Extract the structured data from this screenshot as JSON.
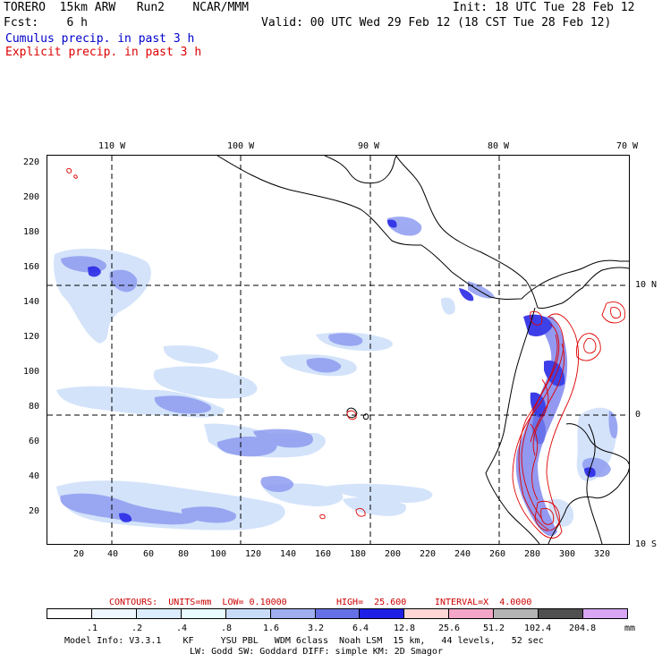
{
  "header": {
    "model_line": "TORERO  15km ARW   Run2    NCAR/MMM",
    "fcst_line": "Fcst:    6 h",
    "init_line": "Init: 18 UTC Tue 28 Feb 12",
    "valid_line": "Valid: 00 UTC Wed 29 Feb 12 (18 CST Tue 28 Feb 12)",
    "legend_cumulus": "Cumulus precip. in past 3 h",
    "legend_explicit": "Explicit precip. in past 3 h",
    "cumulus_color": "#0000cc",
    "explicit_color": "#dd0000"
  },
  "map": {
    "top_lon_labels": [
      "110 W",
      "100 W",
      "90 W",
      "80 W",
      "70 W"
    ],
    "right_lat_labels": [
      "10 N",
      "0",
      "10 S"
    ],
    "left_grid_labels": [
      "220",
      "200",
      "180",
      "160",
      "140",
      "120",
      "100",
      "80",
      "60",
      "40",
      "20"
    ],
    "bottom_grid_labels": [
      "20",
      "40",
      "60",
      "80",
      "100",
      "120",
      "140",
      "160",
      "180",
      "200",
      "220",
      "240",
      "260",
      "280",
      "300",
      "320"
    ]
  },
  "contour_info": {
    "units_label": "CONTOURS:  UNITS=mm  LOW= 0.10000",
    "high_label": "HIGH=  25.600",
    "interval_label": "INTERVAL=X  4.0000"
  },
  "colorbar": {
    "levels": [
      ".1",
      ".2",
      ".4",
      ".8",
      "1.6",
      "3.2",
      "6.4",
      "12.8",
      "25.6",
      "51.2",
      "102.4",
      "204.8"
    ],
    "unit": "mm",
    "colors": [
      "#ffffff",
      "#eef6ff",
      "#dcecff",
      "#e8fbff",
      "#c8dcf8",
      "#a0aef0",
      "#6670e6",
      "#1f1fe6",
      "#ffd6d6",
      "#f4a6c8",
      "#b4b4b4",
      "#505050",
      "#d8a6f4"
    ]
  },
  "footer": {
    "line1": "Model Info: V3.3.1    KF     YSU PBL   WDM 6class  Noah LSM  15 km,   44 levels,   52 sec",
    "line2": "LW: Godd SW: Goddard DIFF: simple KM: 2D Smagor"
  }
}
